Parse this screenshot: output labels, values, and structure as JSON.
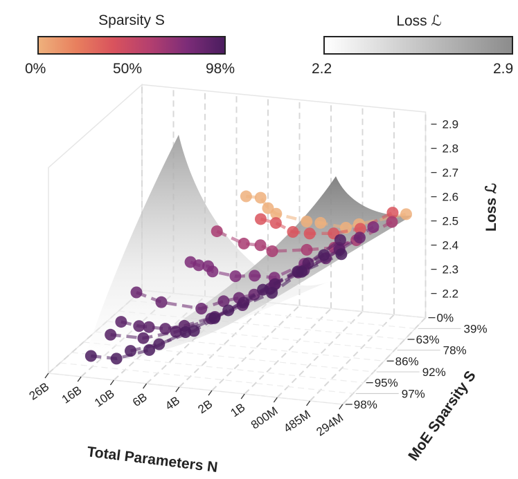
{
  "colorbars": {
    "sparsity": {
      "title": "Sparsity S",
      "labels": [
        "0%",
        "50%",
        "98%"
      ],
      "colors": [
        "#eeb07c",
        "#e8805e",
        "#d9535d",
        "#b43f6f",
        "#7c2c78",
        "#4b1d5f"
      ]
    },
    "loss": {
      "title": "Loss ℒ",
      "labels": [
        "2.2",
        "2.9"
      ],
      "colors": [
        "#ffffff",
        "#8c8c8c"
      ]
    }
  },
  "chart_data": {
    "type": "scatter3d",
    "xlabel": "Total Parameters N",
    "ylabel": "MoE Sparsity S",
    "zlabel": "Loss ℒ",
    "x_ticks": [
      "26B",
      "16B",
      "10B",
      "6B",
      "4B",
      "2B",
      "1B",
      "800M",
      "485M",
      "294M"
    ],
    "x_tick_values_B": [
      26,
      16,
      10,
      6,
      4,
      2,
      1,
      0.8,
      0.485,
      0.294
    ],
    "y_ticks": [
      "0%",
      "39%",
      "63%",
      "78%",
      "86%",
      "92%",
      "95%",
      "97%",
      "98%"
    ],
    "z_ticks": [
      "2.2",
      "2.3",
      "2.4",
      "2.5",
      "2.6",
      "2.7",
      "2.8",
      "2.9"
    ],
    "zlim": [
      2.1,
      2.95
    ],
    "grid": true,
    "surface": "fitted loss surface (gray, translucent)",
    "series": [
      {
        "sparsity": 0,
        "N_B": [
          5.3,
          4.4,
          4.0,
          3.34,
          1.71,
          1.26,
          0.9,
          0.82,
          0.4
        ],
        "loss": [
          2.53,
          2.53,
          2.49,
          2.47,
          2.45,
          2.45,
          2.44,
          2.46,
          2.52
        ]
      },
      {
        "sparsity": 39,
        "N_B": [
          3.68,
          2.64,
          1.82,
          1.26,
          0.91,
          0.7,
          0.42
        ],
        "loss": [
          2.49,
          2.48,
          2.45,
          2.45,
          2.46,
          2.49,
          2.57
        ]
      },
      {
        "sparsity": 63,
        "N_B": [
          5.78,
          4.1,
          2.91,
          2.25,
          1.06,
          0.84,
          0.63,
          0.36
        ],
        "loss": [
          2.47,
          2.43,
          2.43,
          2.41,
          2.43,
          2.45,
          2.49,
          2.58
        ]
      },
      {
        "sparsity": 78,
        "N_B": [
          7.3,
          6.4,
          5.6,
          5.3,
          3.94,
          2.6,
          1.69,
          0.96,
          0.7,
          0.41
        ],
        "loss": [
          2.38,
          2.37,
          2.37,
          2.35,
          2.34,
          2.35,
          2.35,
          2.42,
          2.5,
          2.6
        ]
      },
      {
        "sparsity": 86,
        "N_B": [
          14,
          9.7,
          5.3,
          4.0,
          2.87,
          2.07,
          1.34,
          0.93,
          0.73,
          0.43
        ],
        "loss": [
          2.28,
          2.25,
          2.24,
          2.28,
          2.3,
          2.32,
          2.37,
          2.43,
          2.5,
          2.6
        ]
      },
      {
        "sparsity": 92,
        "N_B": [
          14.8,
          11.4,
          9.85,
          7.6,
          5.7,
          3.8,
          2.1,
          1.16,
          0.83,
          0.5
        ],
        "loss": [
          2.2,
          2.19,
          2.19,
          2.19,
          2.21,
          2.26,
          2.32,
          2.4,
          2.49,
          2.59
        ]
      },
      {
        "sparsity": 95,
        "N_B": [
          14.6,
          9.0,
          5.5,
          3.25,
          1.62,
          0.94,
          0.69,
          0.42
        ],
        "loss": [
          2.19,
          2.19,
          2.23,
          2.3,
          2.38,
          2.47,
          2.57,
          2.68
        ]
      },
      {
        "sparsity": 97,
        "N_B": [
          9.2,
          5.9,
          3.7,
          1.78,
          0.95,
          0.69,
          0.46
        ],
        "loss": [
          2.18,
          2.22,
          2.29,
          2.39,
          2.49,
          2.58,
          2.66
        ]
      },
      {
        "sparsity": 98,
        "N_B": [
          13.9,
          9.6,
          5.8,
          3.5,
          1.9,
          0.83,
          0.55,
          0.3
        ],
        "loss": [
          2.19,
          2.19,
          2.24,
          2.33,
          2.4,
          2.53,
          2.63,
          2.72
        ]
      }
    ]
  }
}
